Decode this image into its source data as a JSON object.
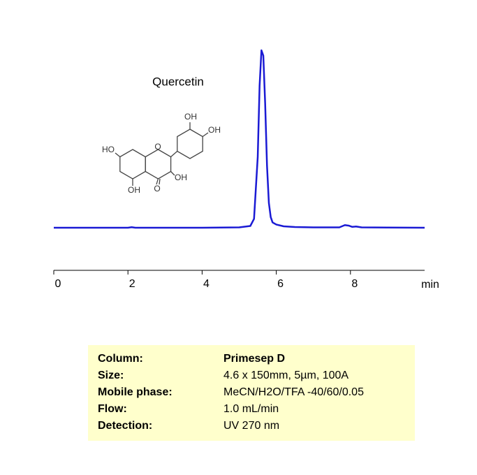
{
  "chart_data": {
    "type": "line",
    "annotation": "Quercetin",
    "x_label": "min",
    "x": [
      0,
      1,
      2,
      2.1,
      2.2,
      3,
      4,
      5,
      5.3,
      5.4,
      5.5,
      5.55,
      5.6,
      5.65,
      5.7,
      5.75,
      5.8,
      5.85,
      5.9,
      6,
      6.2,
      6.5,
      7,
      7.7,
      7.85,
      7.95,
      8.05,
      8.15,
      8.3,
      9,
      10
    ],
    "values": [
      0,
      0,
      0,
      0.3,
      0,
      0,
      0,
      0.2,
      1,
      5,
      40,
      80,
      100,
      97,
      70,
      35,
      14,
      6,
      3,
      1.8,
      0.8,
      0.4,
      0.2,
      0.2,
      1.5,
      1.2,
      0.5,
      0.7,
      0.2,
      0.1,
      0
    ],
    "color": "#1a1ad4",
    "xlim": [
      0,
      10
    ],
    "xticks": [
      0,
      2,
      4,
      6,
      8
    ],
    "ylim": [
      -24,
      100
    ],
    "structure_labels": [
      "OH",
      "OH",
      "HO",
      "O",
      "OH",
      "OH",
      "O"
    ]
  },
  "info": {
    "rows": [
      [
        "Column:",
        "Primesep D"
      ],
      [
        "Size:",
        "4.6 x 150mm, 5µm, 100A"
      ],
      [
        "Mobile phase:",
        "MeCN/H2O/TFA -40/60/0.05"
      ],
      [
        "Flow:",
        "1.0 mL/min"
      ],
      [
        "Detection:",
        "UV 270 nm"
      ]
    ]
  }
}
